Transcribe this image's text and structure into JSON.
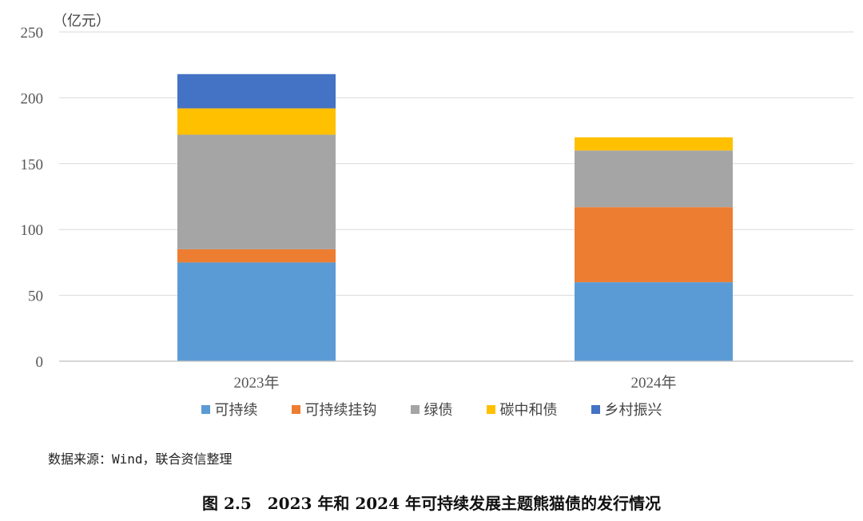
{
  "unit_label": "（亿元）",
  "source": "数据来源：Wind，联合资信整理",
  "caption": "图 2.5　2023 年和 2024 年可持续发展主题熊猫债的发行情况",
  "chart_data": {
    "type": "bar",
    "stacked": true,
    "categories": [
      "2023年",
      "2024年"
    ],
    "series": [
      {
        "name": "可持续",
        "color": "#5B9BD5",
        "values": [
          75,
          60
        ]
      },
      {
        "name": "可持续挂钩",
        "color": "#ED7D31",
        "values": [
          10,
          57
        ]
      },
      {
        "name": "绿债",
        "color": "#A5A5A5",
        "values": [
          87,
          43
        ]
      },
      {
        "name": "碳中和债",
        "color": "#FFC000",
        "values": [
          20,
          10
        ]
      },
      {
        "name": "乡村振兴",
        "color": "#4472C4",
        "values": [
          26,
          0
        ]
      }
    ],
    "ylim": [
      0,
      250
    ],
    "yticks": [
      0,
      50,
      100,
      150,
      200,
      250
    ],
    "grid": true,
    "legend_position": "bottom",
    "ylabel": "",
    "xlabel": "",
    "title": ""
  }
}
